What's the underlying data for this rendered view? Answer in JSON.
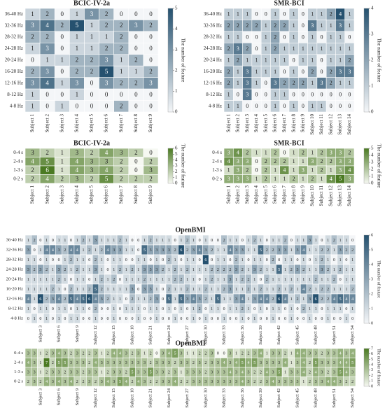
{
  "chart_data": [
    {
      "type": "heatmap",
      "title": "BCIC-IV-2a",
      "colorbar_label": "The number of feature",
      "colormap": [
        "#f4f6f8",
        "#25516f"
      ],
      "zlim": [
        0,
        5
      ],
      "zticks": [
        0,
        1,
        2,
        3,
        4,
        5
      ],
      "x": [
        "Subject 1",
        "Subject 2",
        "Subject 3",
        "Subject 4",
        "Subject 5",
        "Subject 6",
        "Subject 7",
        "Subject 8",
        "Subject 9"
      ],
      "y": [
        "36-40 Hz",
        "32-36 Hz",
        "28-32 Hz",
        "24-28 Hz",
        "20-24 Hz",
        "16-20 Hz",
        "12-16 Hz",
        "8-12 Hz",
        "4-8 Hz"
      ],
      "values": [
        [
          1,
          2,
          0,
          1,
          3,
          2,
          0,
          0,
          0
        ],
        [
          3,
          4,
          2,
          5,
          1,
          2,
          2,
          3,
          2
        ],
        [
          2,
          2,
          0,
          1,
          1,
          1,
          2,
          0,
          0
        ],
        [
          1,
          3,
          0,
          1,
          1,
          2,
          2,
          0,
          0
        ],
        [
          0,
          1,
          1,
          2,
          2,
          3,
          1,
          2,
          0
        ],
        [
          2,
          3,
          0,
          2,
          2,
          5,
          1,
          1,
          2
        ],
        [
          3,
          4,
          1,
          3,
          0,
          3,
          2,
          2,
          3
        ],
        [
          1,
          0,
          0,
          1,
          0,
          0,
          0,
          0,
          0
        ],
        [
          1,
          0,
          1,
          0,
          0,
          0,
          2,
          0,
          0
        ]
      ]
    },
    {
      "type": "heatmap",
      "title": "SMR-BCI",
      "colorbar_label": "The number of feature",
      "colormap": [
        "#f4f6f8",
        "#25516f"
      ],
      "zlim": [
        0,
        4
      ],
      "zticks": [
        0,
        1,
        2,
        3,
        4
      ],
      "x": [
        "Subject 1",
        "Subject 2",
        "Subject 3",
        "Subject 4",
        "Subject 5",
        "Subject 6",
        "Subject 7",
        "Subject 8",
        "Subject 9",
        "Subject 10",
        "Subject 11",
        "Subject 12",
        "Subject 13",
        "Subject 14"
      ],
      "y": [
        "36-40 Hz",
        "32-36 Hz",
        "28-32 Hz",
        "24-28 Hz",
        "20-24 Hz",
        "16-20 Hz",
        "12-16 Hz",
        "8-12 Hz",
        "4-8 Hz"
      ],
      "values": [
        [
          1,
          1,
          1,
          0,
          0,
          1,
          0,
          1,
          0,
          1,
          1,
          2,
          4,
          1
        ],
        [
          2,
          2,
          2,
          2,
          1,
          2,
          2,
          1,
          0,
          3,
          1,
          1,
          3,
          1
        ],
        [
          1,
          1,
          0,
          0,
          1,
          2,
          0,
          1,
          0,
          1,
          0,
          1,
          1,
          0
        ],
        [
          2,
          3,
          2,
          0,
          1,
          2,
          1,
          1,
          1,
          1,
          1,
          1,
          1,
          1
        ],
        [
          1,
          2,
          1,
          1,
          1,
          1,
          1,
          0,
          1,
          1,
          0,
          1,
          1,
          2
        ],
        [
          2,
          1,
          3,
          1,
          1,
          1,
          0,
          1,
          0,
          2,
          0,
          2,
          3,
          3
        ],
        [
          2,
          1,
          3,
          1,
          0,
          3,
          2,
          2,
          2,
          1,
          3,
          2,
          1,
          1
        ],
        [
          1,
          0,
          3,
          0,
          0,
          1,
          1,
          0,
          0,
          0,
          0,
          0,
          0,
          0
        ],
        [
          1,
          1,
          0,
          0,
          0,
          1,
          0,
          1,
          0,
          1,
          1,
          0,
          0,
          0
        ]
      ]
    },
    {
      "type": "heatmap",
      "title": "BCIC-IV-2a",
      "colorbar_label": "The number of feature",
      "colormap": [
        "#f6f8f2",
        "#4b7a22"
      ],
      "zlim": [
        0,
        6
      ],
      "zticks": [
        0,
        1,
        2,
        3,
        4,
        5,
        6
      ],
      "x": [
        "Subject 1",
        "Subject 2",
        "Subject 3",
        "Subject 4",
        "Subject 5",
        "Subject 6",
        "Subject 7",
        "Subject 8",
        "Subject 9"
      ],
      "y": [
        "0-4 s",
        "2-4 s",
        "1-3 s",
        "0-2 s"
      ],
      "values": [
        [
          3,
          2,
          1,
          3,
          2,
          4,
          3,
          2,
          0
        ],
        [
          4,
          5,
          1,
          4,
          3,
          3,
          2,
          0,
          2
        ],
        [
          2,
          6,
          1,
          4,
          3,
          4,
          2,
          0,
          3
        ],
        [
          2,
          4,
          2,
          3,
          2,
          5,
          2,
          2,
          2
        ]
      ]
    },
    {
      "type": "heatmap",
      "title": "SMR-BCI",
      "colorbar_label": "The number of feature",
      "colormap": [
        "#f6f8f2",
        "#4b7a22"
      ],
      "zlim": [
        0,
        5
      ],
      "zticks": [
        0,
        1,
        2,
        3,
        4,
        5
      ],
      "x": [
        "Subject 1",
        "Subject 2",
        "Subject 3",
        "Subject 4",
        "Subject 5",
        "Subject 6",
        "Subject 7",
        "Subject 8",
        "Subject 9",
        "Subject 10",
        "Subject 11",
        "Subject 12",
        "Subject 13",
        "Subject 14"
      ],
      "y": [
        "0-4 s",
        "2-4 s",
        "1-3 s",
        "0-2 s"
      ],
      "values": [
        [
          3,
          4,
          2,
          1,
          1,
          2,
          0,
          1,
          2,
          1,
          2,
          3,
          3,
          2
        ],
        [
          4,
          3,
          3,
          0,
          2,
          2,
          2,
          1,
          1,
          3,
          2,
          2,
          3,
          3
        ],
        [
          1,
          3,
          2,
          0,
          2,
          1,
          4,
          1,
          3,
          1,
          2,
          1,
          3,
          4
        ],
        [
          3,
          3,
          3,
          1,
          2,
          1,
          1,
          2,
          1,
          2,
          1,
          4,
          5,
          3
        ]
      ]
    },
    {
      "type": "heatmap",
      "title": "OpenBMI",
      "colorbar_label": "The number of feature",
      "colormap": [
        "#f4f6f8",
        "#25516f"
      ],
      "zlim": [
        0,
        6
      ],
      "zticks": [
        0,
        1,
        2,
        3,
        4,
        5,
        6
      ],
      "x": [
        null,
        null,
        "Subject 3",
        null,
        null,
        "Subject 6",
        null,
        null,
        "Subject 9",
        null,
        null,
        "Subject 12",
        null,
        null,
        "Subject 15",
        null,
        null,
        "Subject 18",
        null,
        null,
        "Subject 21",
        null,
        null,
        "Subject 24",
        null,
        null,
        "Subject 27",
        null,
        null,
        "Subject 30",
        null,
        null,
        "Subject 33",
        null,
        null,
        "Subject 36",
        null,
        null,
        "Subject 39",
        null,
        null,
        "Subject 42",
        null,
        null,
        "Subject 45",
        null,
        null,
        "Subject 48",
        null,
        null,
        "Subject 51",
        null,
        null,
        "Subject 54"
      ],
      "y": [
        "36-40 Hz",
        "32-36 Hz",
        "28-32 Hz",
        "24-28 Hz",
        "20-24 Hz",
        "16-20 Hz",
        "12-16 Hz",
        "8-12 Hz",
        "4-8 Hz"
      ],
      "values": [
        [
          1,
          2,
          0,
          1,
          0,
          1,
          1,
          0,
          1,
          2,
          1,
          3,
          1,
          1,
          1,
          2,
          1,
          0,
          0,
          1,
          2,
          1,
          1,
          1,
          0,
          1,
          2,
          1,
          0,
          1,
          0,
          0,
          2,
          1,
          1,
          0,
          1,
          2,
          1,
          0,
          1,
          1,
          2,
          0,
          1,
          1,
          3,
          1,
          0,
          1,
          2,
          1,
          1,
          0
        ],
        [
          3,
          0,
          1,
          4,
          4,
          3,
          2,
          4,
          4,
          1,
          2,
          1,
          2,
          4,
          3,
          3,
          1,
          1,
          0,
          5,
          3,
          3,
          3,
          3,
          2,
          6,
          2,
          3,
          4,
          3,
          2,
          1,
          1,
          4,
          3,
          3,
          1,
          1,
          5,
          2,
          2,
          3,
          3,
          1,
          3,
          4,
          1,
          1,
          2,
          2,
          1,
          3,
          2,
          2
        ],
        [
          1,
          1,
          0,
          1,
          0,
          0,
          1,
          2,
          1,
          1,
          0,
          2,
          1,
          0,
          1,
          1,
          0,
          0,
          1,
          1,
          0,
          1,
          0,
          2,
          1,
          0,
          1,
          1,
          0,
          6,
          0,
          1,
          1,
          0,
          2,
          1,
          0,
          1,
          1,
          0,
          2,
          0,
          1,
          1,
          0,
          1,
          0,
          1,
          2,
          1,
          0,
          1,
          0,
          1
        ],
        [
          3,
          2,
          3,
          2,
          1,
          3,
          2,
          1,
          2,
          1,
          1,
          3,
          1,
          0,
          1,
          2,
          1,
          2,
          1,
          3,
          3,
          3,
          2,
          1,
          2,
          1,
          2,
          1,
          1,
          1,
          2,
          2,
          2,
          2,
          3,
          2,
          1,
          3,
          2,
          1,
          1,
          5,
          1,
          2,
          3,
          2,
          1,
          1,
          3,
          2,
          1,
          2,
          1,
          1
        ],
        [
          1,
          1,
          1,
          1,
          1,
          2,
          1,
          0,
          1,
          1,
          0,
          1,
          2,
          1,
          2,
          0,
          1,
          1,
          1,
          2,
          1,
          1,
          1,
          1,
          2,
          2,
          1,
          1,
          0,
          1,
          2,
          1,
          1,
          3,
          1,
          2,
          2,
          1,
          0,
          2,
          1,
          1,
          1,
          1,
          1,
          1,
          1,
          2,
          1,
          1,
          2,
          0,
          1,
          1
        ],
        [
          1,
          1,
          1,
          1,
          2,
          1,
          0,
          2,
          1,
          1,
          2,
          5,
          2,
          1,
          1,
          1,
          1,
          3,
          0,
          3,
          3,
          1,
          0,
          2,
          1,
          1,
          2,
          1,
          1,
          2,
          1,
          1,
          2,
          3,
          1,
          1,
          2,
          1,
          2,
          1,
          1,
          2,
          1,
          2,
          1,
          4,
          2,
          1,
          2,
          2,
          1,
          1,
          1,
          2
        ],
        [
          4,
          1,
          6,
          2,
          3,
          4,
          2,
          5,
          4,
          5,
          6,
          4,
          3,
          2,
          1,
          1,
          0,
          2,
          1,
          1,
          2,
          3,
          0,
          5,
          1,
          5,
          3,
          4,
          3,
          2,
          1,
          5,
          1,
          1,
          3,
          4,
          1,
          3,
          4,
          4,
          2,
          6,
          4,
          1,
          2,
          1,
          3,
          6,
          2,
          2,
          4,
          5,
          4,
          4
        ],
        [
          1,
          0,
          1,
          1,
          0,
          1,
          1,
          0,
          1,
          1,
          0,
          2,
          0,
          0,
          1,
          0,
          1,
          1,
          1,
          0,
          1,
          1,
          0,
          1,
          0,
          1,
          0,
          1,
          2,
          0,
          1,
          1,
          0,
          1,
          1,
          2,
          1,
          0,
          1,
          0,
          1,
          1,
          0,
          1,
          0,
          2,
          1,
          1,
          0,
          1,
          1,
          1,
          0,
          1
        ],
        [
          0,
          1,
          0,
          1,
          0,
          1,
          0,
          1,
          1,
          0,
          0,
          1,
          0,
          0,
          1,
          0,
          0,
          0,
          1,
          0,
          0,
          1,
          0,
          0,
          1,
          0,
          0,
          1,
          0,
          1,
          0,
          0,
          1,
          0,
          0,
          1,
          0,
          1,
          0,
          0,
          1,
          0,
          0,
          1,
          0,
          0,
          1,
          0,
          0,
          1,
          0,
          0,
          1,
          0
        ]
      ]
    },
    {
      "type": "heatmap",
      "title": "OpenBMI",
      "colorbar_label": "The number of feature",
      "colormap": [
        "#f6f8f2",
        "#4b7a22"
      ],
      "zlim": [
        0,
        7
      ],
      "zticks": [
        0,
        1,
        2,
        3,
        4,
        5,
        6,
        7
      ],
      "x": [
        null,
        null,
        "Subject 3",
        null,
        null,
        "Subject 6",
        null,
        null,
        "Subject 9",
        null,
        null,
        "Subject 12",
        null,
        null,
        "Subject 15",
        null,
        null,
        "Subject 18",
        null,
        null,
        "Subject 21",
        null,
        null,
        "Subject 24",
        null,
        null,
        "Subject 27",
        null,
        null,
        "Subject 30",
        null,
        null,
        "Subject 33",
        null,
        null,
        "Subject 36",
        null,
        null,
        "Subject 39",
        null,
        null,
        "Subject 42",
        null,
        null,
        "Subject 45",
        null,
        null,
        "Subject 48",
        null,
        null,
        "Subject 51",
        null,
        null,
        "Subject 54"
      ],
      "y": [
        "0-4 s",
        "2-4 s",
        "1-3 s",
        "0-2 s"
      ],
      "values": [
        [
          3,
          3,
          1,
          2,
          3,
          4,
          3,
          2,
          3,
          2,
          2,
          3,
          1,
          2,
          4,
          4,
          3,
          2,
          3,
          1,
          2,
          0,
          3,
          4,
          5,
          3,
          1,
          1,
          2,
          2,
          3,
          0,
          0,
          3,
          1,
          2,
          2,
          3,
          4,
          1,
          3,
          3,
          2,
          1,
          4,
          4,
          3,
          3,
          2,
          3,
          3,
          4,
          3,
          4
        ],
        [
          4,
          3,
          1,
          7,
          2,
          5,
          5,
          3,
          3,
          3,
          2,
          4,
          3,
          3,
          3,
          3,
          3,
          3,
          3,
          3,
          2,
          3,
          3,
          3,
          2,
          3,
          3,
          2,
          3,
          2,
          3,
          3,
          4,
          3,
          4,
          5,
          4,
          5,
          3,
          3,
          3,
          3,
          4,
          1,
          3,
          4,
          2,
          5,
          3,
          3,
          3,
          4,
          4,
          5
        ],
        [
          3,
          3,
          1,
          2,
          3,
          3,
          2,
          3,
          3,
          2,
          3,
          3,
          1,
          2,
          3,
          3,
          2,
          5,
          3,
          3,
          5,
          3,
          3,
          2,
          3,
          1,
          3,
          3,
          3,
          2,
          3,
          3,
          3,
          4,
          3,
          4,
          3,
          2,
          2,
          4,
          3,
          5,
          1,
          3,
          3,
          4,
          2,
          4,
          3,
          2,
          3,
          5,
          4,
          3
        ],
        [
          2,
          3,
          2,
          4,
          3,
          4,
          3,
          4,
          2,
          2,
          3,
          2,
          3,
          4,
          3,
          5,
          4,
          2,
          4,
          3,
          2,
          2,
          3,
          3,
          4,
          2,
          2,
          3,
          3,
          3,
          3,
          3,
          3,
          3,
          3,
          4,
          3,
          2,
          2,
          3,
          4,
          3,
          3,
          3,
          3,
          1,
          2,
          3,
          3,
          4,
          4,
          3,
          2,
          2
        ]
      ]
    }
  ]
}
